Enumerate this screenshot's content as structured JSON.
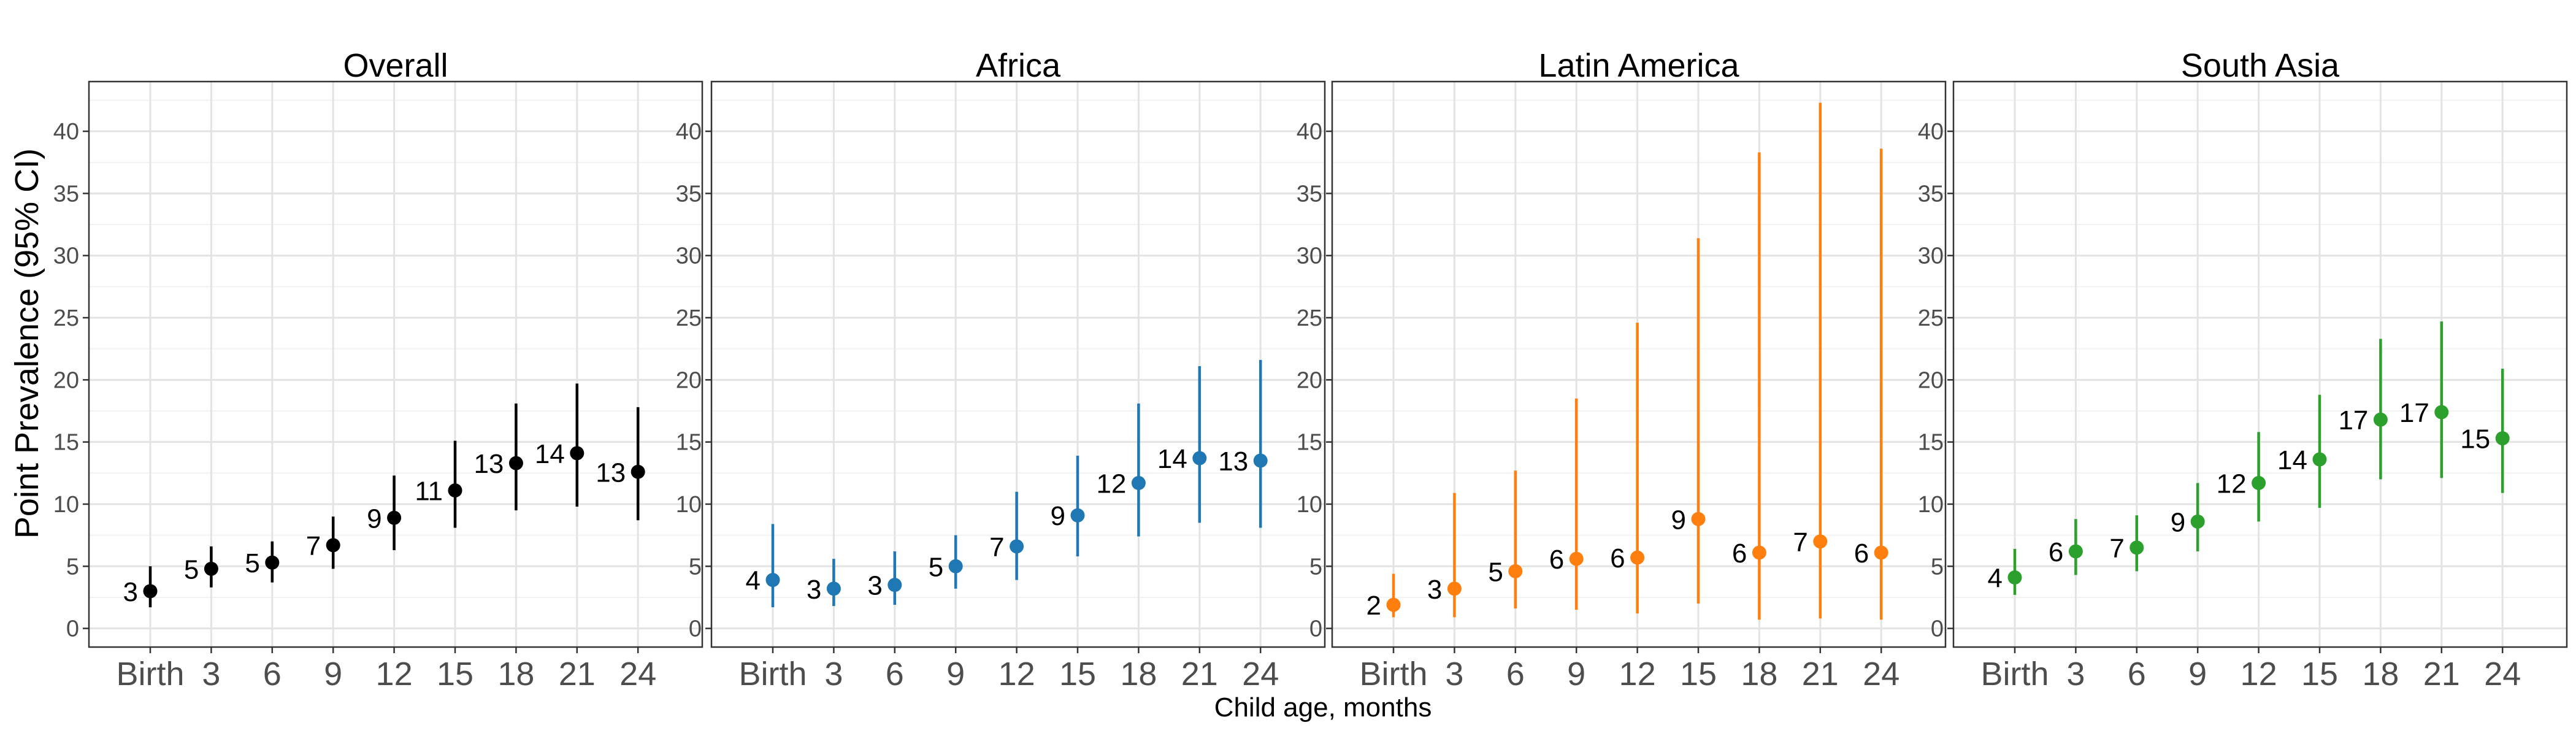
{
  "figure": {
    "ylabel": "Point Prevalence (95% CI)",
    "xlabel": "Child age, months"
  },
  "chart_data": {
    "type": "scatter",
    "categories": [
      "Birth",
      "3",
      "6",
      "9",
      "12",
      "15",
      "18",
      "21",
      "24"
    ],
    "ylim": [
      -1.5,
      44
    ],
    "yticks": [
      0,
      5,
      10,
      15,
      20,
      25,
      30,
      35,
      40
    ],
    "grid": true,
    "panels": [
      {
        "title": "Overall",
        "color": "#000000",
        "points": [
          {
            "x": "Birth",
            "y": 3.0,
            "lo": 1.7,
            "hi": 5.0,
            "label": "3"
          },
          {
            "x": "3",
            "y": 4.8,
            "lo": 3.3,
            "hi": 6.6,
            "label": "5"
          },
          {
            "x": "6",
            "y": 5.3,
            "lo": 3.7,
            "hi": 7.0,
            "label": "5"
          },
          {
            "x": "9",
            "y": 6.7,
            "lo": 4.8,
            "hi": 9.0,
            "label": "7"
          },
          {
            "x": "12",
            "y": 8.9,
            "lo": 6.3,
            "hi": 12.3,
            "label": "9"
          },
          {
            "x": "15",
            "y": 11.1,
            "lo": 8.1,
            "hi": 15.1,
            "label": "11"
          },
          {
            "x": "18",
            "y": 13.3,
            "lo": 9.5,
            "hi": 18.1,
            "label": "13"
          },
          {
            "x": "21",
            "y": 14.1,
            "lo": 9.8,
            "hi": 19.7,
            "label": "14"
          },
          {
            "x": "24",
            "y": 12.6,
            "lo": 8.7,
            "hi": 17.8,
            "label": "13"
          }
        ]
      },
      {
        "title": "Africa",
        "color": "#1f77b4",
        "points": [
          {
            "x": "Birth",
            "y": 3.9,
            "lo": 1.7,
            "hi": 8.4,
            "label": "4"
          },
          {
            "x": "3",
            "y": 3.2,
            "lo": 1.8,
            "hi": 5.6,
            "label": "3"
          },
          {
            "x": "6",
            "y": 3.5,
            "lo": 1.9,
            "hi": 6.2,
            "label": "3"
          },
          {
            "x": "9",
            "y": 5.0,
            "lo": 3.2,
            "hi": 7.5,
            "label": "5"
          },
          {
            "x": "12",
            "y": 6.6,
            "lo": 3.9,
            "hi": 11.0,
            "label": "7"
          },
          {
            "x": "15",
            "y": 9.1,
            "lo": 5.8,
            "hi": 13.9,
            "label": "9"
          },
          {
            "x": "18",
            "y": 11.7,
            "lo": 7.4,
            "hi": 18.1,
            "label": "12"
          },
          {
            "x": "21",
            "y": 13.7,
            "lo": 8.5,
            "hi": 21.1,
            "label": "14"
          },
          {
            "x": "24",
            "y": 13.5,
            "lo": 8.1,
            "hi": 21.6,
            "label": "13"
          }
        ]
      },
      {
        "title": "Latin America",
        "color": "#ff7f0e",
        "points": [
          {
            "x": "Birth",
            "y": 1.9,
            "lo": 0.9,
            "hi": 4.4,
            "label": "2"
          },
          {
            "x": "3",
            "y": 3.2,
            "lo": 0.9,
            "hi": 10.9,
            "label": "3"
          },
          {
            "x": "6",
            "y": 4.6,
            "lo": 1.6,
            "hi": 12.7,
            "label": "5"
          },
          {
            "x": "9",
            "y": 5.6,
            "lo": 1.5,
            "hi": 18.5,
            "label": "6"
          },
          {
            "x": "12",
            "y": 5.7,
            "lo": 1.2,
            "hi": 24.6,
            "label": "6"
          },
          {
            "x": "15",
            "y": 8.8,
            "lo": 2.0,
            "hi": 31.4,
            "label": "9"
          },
          {
            "x": "18",
            "y": 6.1,
            "lo": 0.7,
            "hi": 38.3,
            "label": "6"
          },
          {
            "x": "21",
            "y": 7.0,
            "lo": 0.8,
            "hi": 42.3,
            "label": "7"
          },
          {
            "x": "24",
            "y": 6.1,
            "lo": 0.7,
            "hi": 38.6,
            "label": "6"
          }
        ]
      },
      {
        "title": "South Asia",
        "color": "#2ca02c",
        "points": [
          {
            "x": "Birth",
            "y": 4.1,
            "lo": 2.7,
            "hi": 6.4,
            "label": "4"
          },
          {
            "x": "3",
            "y": 6.2,
            "lo": 4.3,
            "hi": 8.8,
            "label": "6"
          },
          {
            "x": "6",
            "y": 6.5,
            "lo": 4.6,
            "hi": 9.1,
            "label": "7"
          },
          {
            "x": "9",
            "y": 8.6,
            "lo": 6.2,
            "hi": 11.7,
            "label": "9"
          },
          {
            "x": "12",
            "y": 11.7,
            "lo": 8.6,
            "hi": 15.8,
            "label": "12"
          },
          {
            "x": "15",
            "y": 13.6,
            "lo": 9.7,
            "hi": 18.8,
            "label": "14"
          },
          {
            "x": "18",
            "y": 16.8,
            "lo": 12.0,
            "hi": 23.3,
            "label": "17"
          },
          {
            "x": "21",
            "y": 17.4,
            "lo": 12.1,
            "hi": 24.7,
            "label": "17"
          },
          {
            "x": "24",
            "y": 15.3,
            "lo": 10.9,
            "hi": 20.9,
            "label": "15"
          }
        ]
      }
    ]
  }
}
